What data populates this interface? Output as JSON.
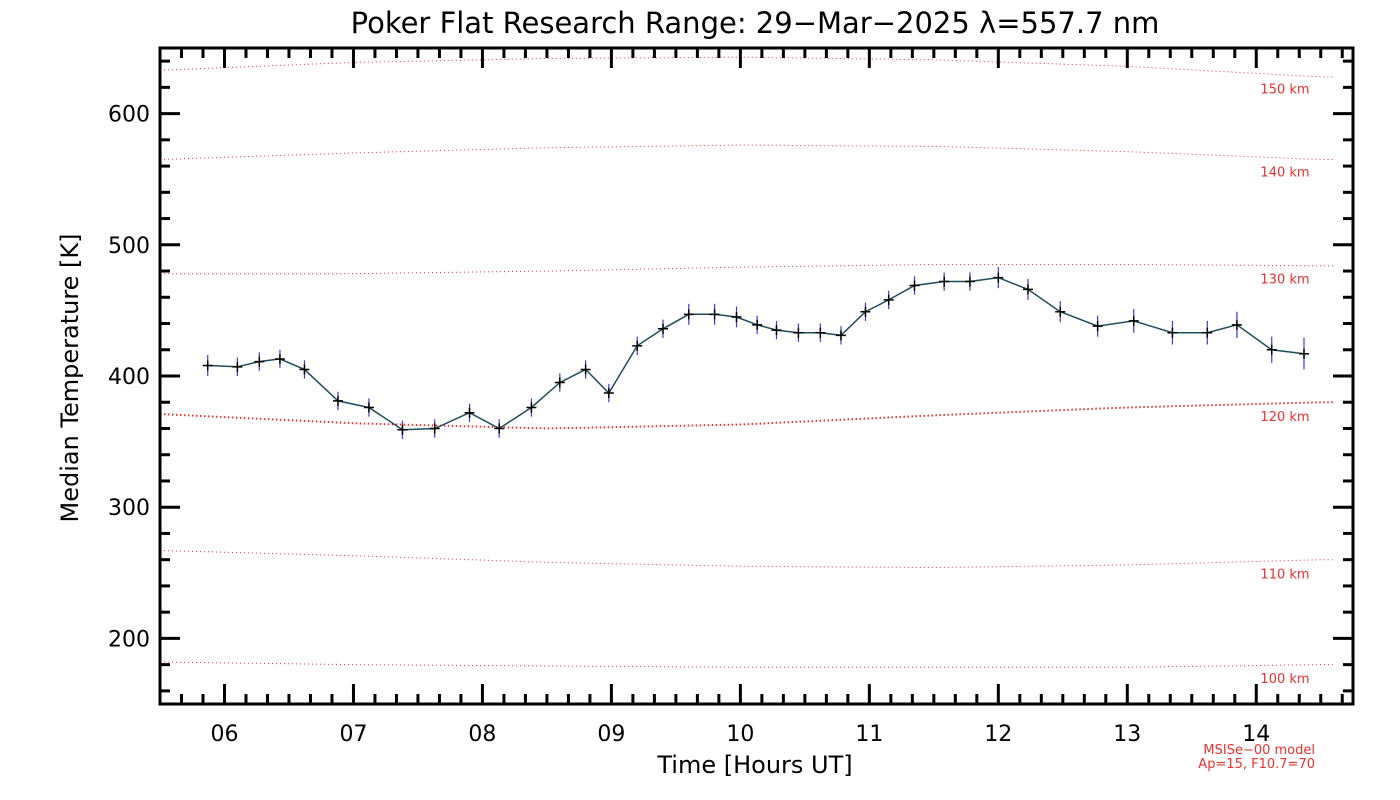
{
  "chart_data": {
    "type": "line",
    "title": "Poker Flat Research Range: 29−Mar−2025 λ=557.7 nm",
    "xlabel": "Time [Hours UT]",
    "ylabel": "Median Temperature [K]",
    "xlim": [
      5.5,
      14.75
    ],
    "ylim": [
      150,
      650
    ],
    "x_ticks": [
      6,
      7,
      8,
      9,
      10,
      11,
      12,
      13,
      14
    ],
    "x_tick_labels": [
      "06",
      "07",
      "08",
      "09",
      "10",
      "11",
      "12",
      "13",
      "14"
    ],
    "y_ticks": [
      200,
      300,
      400,
      500,
      600
    ],
    "y_tick_labels": [
      "200",
      "300",
      "400",
      "500",
      "600"
    ],
    "grid": false,
    "colors": {
      "line": "#1e4d5c",
      "marker": "#000000",
      "error_bar": "#3b3bd6",
      "reference": "#e8322f"
    },
    "series": [
      {
        "x": [
          5.87,
          6.1,
          6.27,
          6.43,
          6.62,
          6.88,
          7.12,
          7.38,
          7.63,
          7.9,
          8.13,
          8.38,
          8.6,
          8.8,
          8.98,
          9.2,
          9.4,
          9.6,
          9.8,
          9.97,
          10.13,
          10.28,
          10.45,
          10.62,
          10.78,
          10.97,
          11.15,
          11.35,
          11.58,
          11.78,
          12.0,
          12.23,
          12.48,
          12.77,
          13.05,
          13.35,
          13.62,
          13.85,
          14.12,
          14.37
        ],
        "values": [
          408,
          407,
          411,
          413,
          405,
          381,
          376,
          359,
          360,
          372,
          360,
          376,
          395,
          405,
          387,
          423,
          436,
          447,
          447,
          445,
          439,
          435,
          433,
          433,
          431,
          449,
          458,
          469,
          472,
          472,
          475,
          466,
          449,
          438,
          442,
          433,
          433,
          439,
          420,
          417
        ],
        "errors": [
          8,
          7,
          7,
          7,
          7,
          7,
          7,
          7,
          7,
          7,
          7,
          7,
          7,
          7,
          7,
          7,
          7,
          8,
          8,
          8,
          7,
          7,
          7,
          7,
          7,
          7,
          7,
          7,
          7,
          7,
          8,
          8,
          8,
          8,
          9,
          9,
          9,
          10,
          10,
          12
        ]
      }
    ],
    "reference_curves": [
      {
        "label": "100 km",
        "x": [
          5.5,
          7,
          8.5,
          10,
          11.5,
          13,
          14.5
        ],
        "values": [
          182,
          180,
          179,
          178,
          178,
          178,
          180
        ]
      },
      {
        "label": "110 km",
        "x": [
          5.5,
          7,
          8.5,
          10,
          11.5,
          13,
          14.5
        ],
        "values": [
          267,
          263,
          258,
          255,
          254,
          256,
          260
        ]
      },
      {
        "label": "120 km",
        "x": [
          5.5,
          7,
          8.5,
          10,
          11.5,
          13,
          14.5
        ],
        "values": [
          371,
          364,
          360,
          363,
          370,
          376,
          380
        ]
      },
      {
        "label": "130 km",
        "x": [
          5.5,
          7,
          8.5,
          10,
          11.5,
          13,
          14.5
        ],
        "values": [
          478,
          478,
          480,
          483,
          485,
          485,
          484
        ]
      },
      {
        "label": "140 km",
        "x": [
          5.5,
          7,
          8.5,
          10,
          11.5,
          13,
          14.5
        ],
        "values": [
          565,
          570,
          574,
          576,
          575,
          571,
          565
        ]
      },
      {
        "label": "150 km",
        "x": [
          5.5,
          7,
          8.5,
          10,
          11.5,
          13,
          14.5
        ],
        "values": [
          633,
          639,
          642,
          643,
          641,
          636,
          628
        ]
      }
    ],
    "annotations": [
      "MSISe−00 model",
      "Ap=15, F10.7=70"
    ]
  }
}
